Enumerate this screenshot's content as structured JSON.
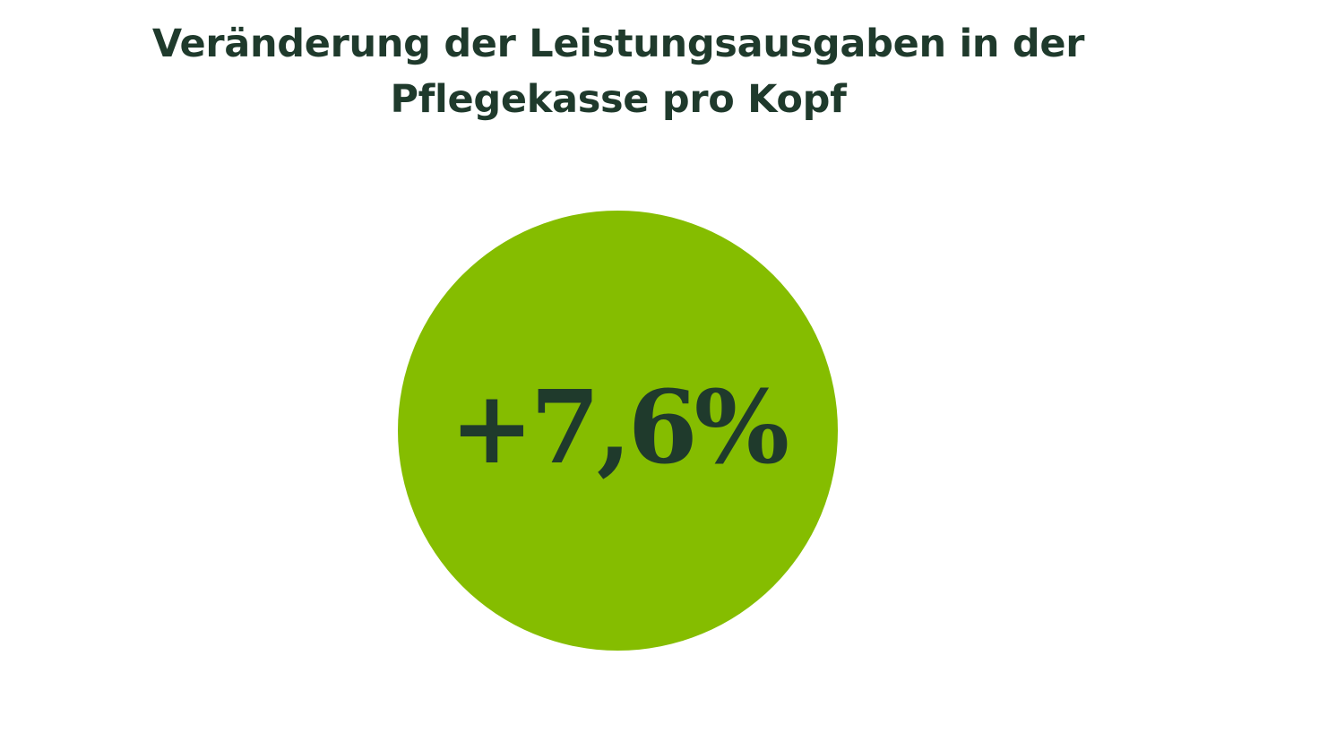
{
  "title": {
    "line1": "Veränderung der Leistungsausgaben in der",
    "line2": "Pflegekasse pro Kopf"
  },
  "stat": {
    "value": "+7,6%",
    "circle_color": "#85bd00",
    "text_color": "#1f3a2c"
  }
}
